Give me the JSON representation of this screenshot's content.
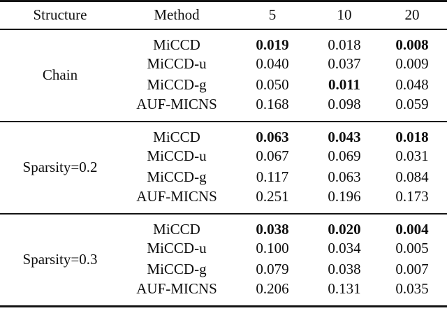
{
  "colors": {
    "background": "#ffffff",
    "text": "#0d0d0d",
    "rule": "#141414"
  },
  "table": {
    "headers": [
      "Structure",
      "Method",
      "5",
      "10",
      "20"
    ],
    "groups": [
      {
        "structure": "Chain",
        "rows": [
          {
            "method": "MiCCD",
            "values": [
              "0.019",
              "0.018",
              "0.008"
            ],
            "bold": [
              true,
              false,
              true
            ]
          },
          {
            "method": "MiCCD-u",
            "values": [
              "0.040",
              "0.037",
              "0.009"
            ],
            "bold": [
              false,
              false,
              false
            ]
          },
          {
            "method": "MiCCD-g",
            "values": [
              "0.050",
              "0.011",
              "0.048"
            ],
            "bold": [
              false,
              true,
              false
            ]
          },
          {
            "method": "AUF-MICNS",
            "values": [
              "0.168",
              "0.098",
              "0.059"
            ],
            "bold": [
              false,
              false,
              false
            ]
          }
        ]
      },
      {
        "structure": "Sparsity=0.2",
        "rows": [
          {
            "method": "MiCCD",
            "values": [
              "0.063",
              "0.043",
              "0.018"
            ],
            "bold": [
              true,
              true,
              true
            ]
          },
          {
            "method": "MiCCD-u",
            "values": [
              "0.067",
              "0.069",
              "0.031"
            ],
            "bold": [
              false,
              false,
              false
            ]
          },
          {
            "method": "MiCCD-g",
            "values": [
              "0.117",
              "0.063",
              "0.084"
            ],
            "bold": [
              false,
              false,
              false
            ]
          },
          {
            "method": "AUF-MICNS",
            "values": [
              "0.251",
              "0.196",
              "0.173"
            ],
            "bold": [
              false,
              false,
              false
            ]
          }
        ]
      },
      {
        "structure": "Sparsity=0.3",
        "rows": [
          {
            "method": "MiCCD",
            "values": [
              "0.038",
              "0.020",
              "0.004"
            ],
            "bold": [
              true,
              true,
              true
            ]
          },
          {
            "method": "MiCCD-u",
            "values": [
              "0.100",
              "0.034",
              "0.005"
            ],
            "bold": [
              false,
              false,
              false
            ]
          },
          {
            "method": "MiCCD-g",
            "values": [
              "0.079",
              "0.038",
              "0.007"
            ],
            "bold": [
              false,
              false,
              false
            ]
          },
          {
            "method": "AUF-MICNS",
            "values": [
              "0.206",
              "0.131",
              "0.035"
            ],
            "bold": [
              false,
              false,
              false
            ]
          }
        ]
      }
    ]
  }
}
